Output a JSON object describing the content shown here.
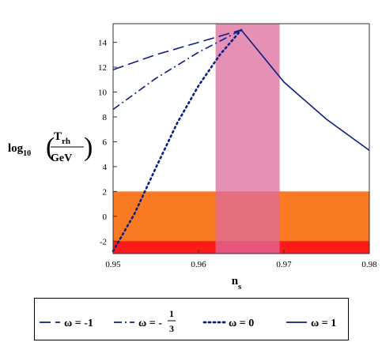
{
  "chart_data": {
    "type": "line",
    "xlabel_main": "n",
    "xlabel_sub": "s",
    "ylabel_prefix": "log",
    "ylabel_sub": "10",
    "ylabel_num_main": "T",
    "ylabel_num_sub": "rh",
    "ylabel_den": "GeV",
    "xlim": [
      0.95,
      0.98
    ],
    "ylim": [
      -3,
      15.5
    ],
    "x_ticks": [
      0.95,
      0.96,
      0.97,
      0.98
    ],
    "x_tick_labels": [
      "0.95",
      "0.96",
      "0.97",
      "0.98"
    ],
    "y_ticks": [
      -2,
      0,
      2,
      4,
      6,
      8,
      10,
      12,
      14
    ],
    "y_tick_labels": [
      "-2",
      "0",
      "2",
      "4",
      "6",
      "8",
      "10",
      "12",
      "14"
    ],
    "grid": false,
    "legend_position": "bottom",
    "bands": [
      {
        "orientation": "horizontal",
        "y0": -3,
        "y1": 2,
        "color": "#f97a22"
      },
      {
        "orientation": "horizontal",
        "y0": -3,
        "y1": -2,
        "color": "#ff1a1a"
      },
      {
        "orientation": "vertical",
        "x0": 0.962,
        "x1": 0.9695,
        "color": "#dd6b9e",
        "opacity": 0.75
      }
    ],
    "series": [
      {
        "label_main": "ω = -1",
        "label_has_fraction": false,
        "dash": "14,6",
        "color": "#0b1f80",
        "x": [
          0.95,
          0.955,
          0.96,
          0.965
        ],
        "y": [
          11.8,
          13.0,
          14.0,
          15.0
        ]
      },
      {
        "label_main": "ω = -",
        "label_has_fraction": true,
        "label_num": "1",
        "label_den": "3",
        "dash": "10,4,2,4",
        "color": "#0b1f80",
        "x": [
          0.95,
          0.955,
          0.96,
          0.965
        ],
        "y": [
          8.6,
          11.1,
          13.2,
          15.0
        ]
      },
      {
        "label_main": "ω = 0",
        "label_has_fraction": false,
        "dash": "2,4",
        "color": "#0b1f80",
        "x": [
          0.95,
          0.9525,
          0.955,
          0.9575,
          0.96,
          0.9625,
          0.965
        ],
        "y": [
          -2.8,
          0.2,
          3.9,
          7.5,
          10.5,
          13.0,
          15.0
        ]
      },
      {
        "label_main": "ω = 1",
        "label_has_fraction": false,
        "dash": "",
        "color": "#0b1f80",
        "x": [
          0.965,
          0.97,
          0.975,
          0.98
        ],
        "y": [
          15.0,
          10.8,
          7.8,
          5.3
        ]
      }
    ]
  }
}
